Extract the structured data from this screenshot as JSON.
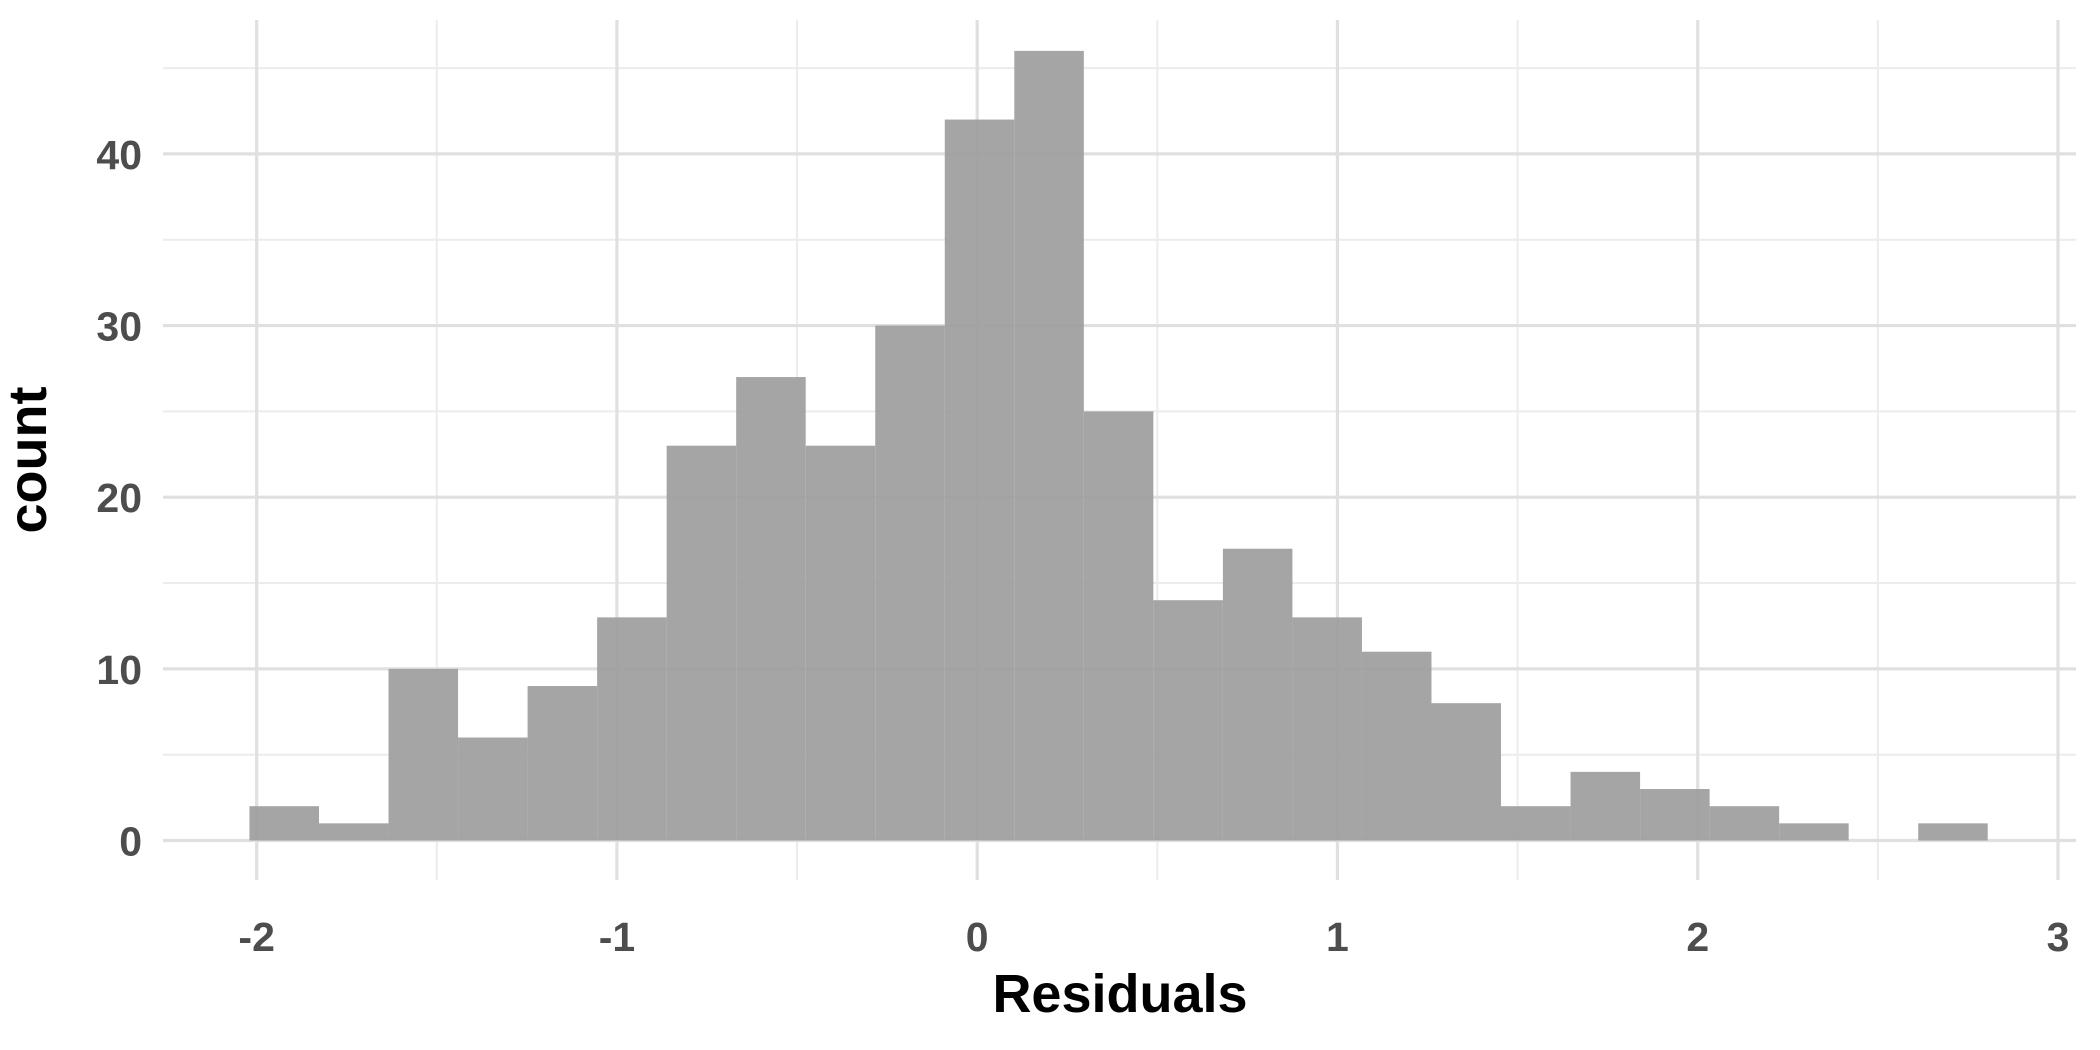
{
  "chart_data": {
    "type": "bar",
    "subtype": "histogram",
    "title": "",
    "xlabel": "Residuals",
    "ylabel": "count",
    "xlim": [
      -2.26,
      3.05
    ],
    "ylim": [
      -2.3,
      47.8
    ],
    "x_ticks": [
      "-2",
      "-1",
      "0",
      "1",
      "2",
      "3"
    ],
    "x_tick_values": [
      -2,
      -1,
      0,
      1,
      2,
      3
    ],
    "y_ticks": [
      "0",
      "10",
      "20",
      "30",
      "40"
    ],
    "y_tick_values": [
      0,
      10,
      20,
      30,
      40
    ],
    "x_minor_grid": [
      -1.5,
      -0.5,
      0.5,
      1.5,
      2.5
    ],
    "y_minor_grid": [
      5,
      15,
      25,
      35,
      45
    ],
    "grid": true,
    "legend": "none",
    "bar_color": "#9e9e9e",
    "bins": [
      {
        "x0": -2.02,
        "x1": -1.827,
        "count": 2
      },
      {
        "x0": -1.827,
        "x1": -1.634,
        "count": 1
      },
      {
        "x0": -1.634,
        "x1": -1.441,
        "count": 10
      },
      {
        "x0": -1.441,
        "x1": -1.248,
        "count": 6
      },
      {
        "x0": -1.248,
        "x1": -1.055,
        "count": 9
      },
      {
        "x0": -1.055,
        "x1": -0.862,
        "count": 13
      },
      {
        "x0": -0.862,
        "x1": -0.669,
        "count": 23
      },
      {
        "x0": -0.669,
        "x1": -0.476,
        "count": 27
      },
      {
        "x0": -0.476,
        "x1": -0.283,
        "count": 23
      },
      {
        "x0": -0.283,
        "x1": -0.09,
        "count": 30
      },
      {
        "x0": -0.09,
        "x1": 0.103,
        "count": 42
      },
      {
        "x0": 0.103,
        "x1": 0.296,
        "count": 46
      },
      {
        "x0": 0.296,
        "x1": 0.489,
        "count": 25
      },
      {
        "x0": 0.489,
        "x1": 0.682,
        "count": 14
      },
      {
        "x0": 0.682,
        "x1": 0.875,
        "count": 17
      },
      {
        "x0": 0.875,
        "x1": 1.068,
        "count": 13
      },
      {
        "x0": 1.068,
        "x1": 1.261,
        "count": 11
      },
      {
        "x0": 1.261,
        "x1": 1.454,
        "count": 8
      },
      {
        "x0": 1.454,
        "x1": 1.647,
        "count": 2
      },
      {
        "x0": 1.647,
        "x1": 1.84,
        "count": 4
      },
      {
        "x0": 1.84,
        "x1": 2.033,
        "count": 3
      },
      {
        "x0": 2.033,
        "x1": 2.226,
        "count": 2
      },
      {
        "x0": 2.226,
        "x1": 2.419,
        "count": 1
      },
      {
        "x0": 2.419,
        "x1": 2.612,
        "count": 0
      },
      {
        "x0": 2.612,
        "x1": 2.805,
        "count": 1
      }
    ]
  }
}
